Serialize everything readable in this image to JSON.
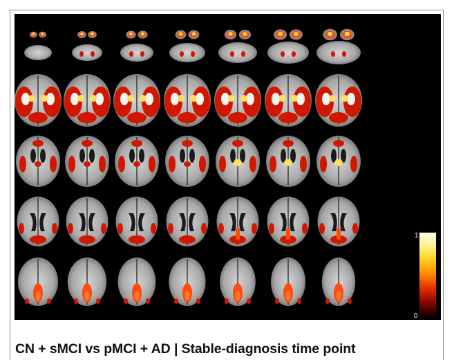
{
  "figure": {
    "caption": "CN + sMCI vs pMCI + AD  |  Stable-diagnosis time point",
    "colorbar": {
      "max_label": "1",
      "min_label": "0",
      "colors": [
        "#fffce8",
        "#fff59a",
        "#ffd21f",
        "#ff8a00",
        "#e42f00",
        "#8e0500",
        "#2a0000",
        "#000000"
      ]
    },
    "grid": {
      "rows": 5,
      "columns": 7
    },
    "colors": {
      "background": "#000000",
      "brain": "#bdbdbd",
      "activation_low": "#b80000",
      "activation_mid": "#ff3300",
      "activation_high": "#fff080"
    }
  }
}
